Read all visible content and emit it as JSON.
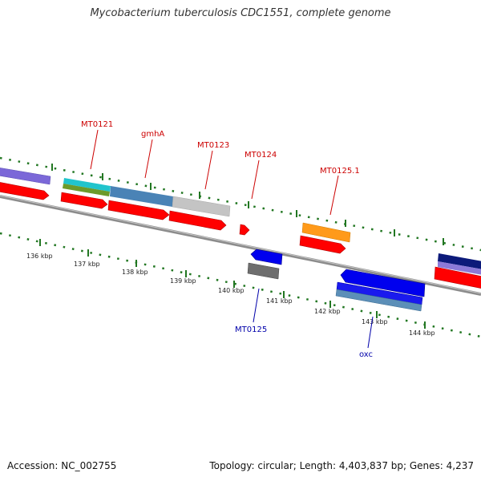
{
  "title": "Mycobacterium tuberculosis CDC1551, complete genome",
  "footer": {
    "accession": "Accession: NC_002755",
    "summary": "Topology: circular; Length: 4,403,837 bp; Genes: 4,237"
  },
  "scale_labels": [
    "136 kbp",
    "137 kbp",
    "138 kbp",
    "139 kbp",
    "140 kbp",
    "141 kbp",
    "142 kbp",
    "143 kbp",
    "144 kbp"
  ],
  "gene_labels": [
    {
      "text": "MT0121",
      "color": "#cc0000"
    },
    {
      "text": "gmhA",
      "color": "#cc0000"
    },
    {
      "text": "MT0123",
      "color": "#cc0000"
    },
    {
      "text": "MT0124",
      "color": "#cc0000"
    },
    {
      "text": "MT0125.1",
      "color": "#cc0000"
    },
    {
      "text": "MT0125",
      "color": "#0000aa"
    },
    {
      "text": "oxc",
      "color": "#0000aa"
    }
  ],
  "colors": {
    "backbone": "#8c8c8c",
    "tick": "#227722",
    "forward_cds": "#ff0000",
    "reverse_cds": "#0000ee"
  }
}
